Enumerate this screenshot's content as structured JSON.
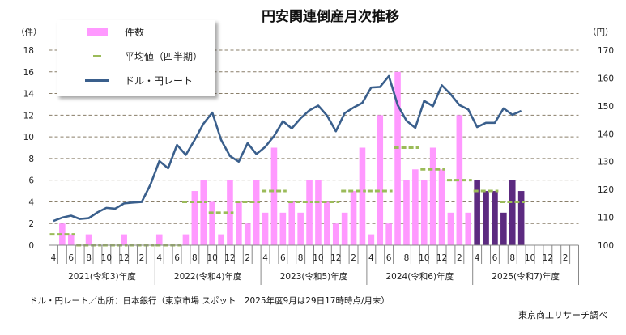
{
  "title": "円安関連倒産月次推移",
  "left_unit": "（件）",
  "right_unit": "（円）",
  "legend": {
    "count": "件数",
    "average": "平均値（四半期）",
    "rate": "ドル・円レート"
  },
  "source_note": "ドル・円レート／出所：日本銀行（東京市場 スポット　2025年度9月は29日17時時点/月末）",
  "credit": "東京商工リサーチ調べ",
  "colors": {
    "bar": "#ff99ff",
    "bar_current": "#5c2a80",
    "average": "#9bbb59",
    "rate": "#3a5f8c",
    "grid": "#8a7f6a"
  },
  "chart_data": {
    "type": "bar+line",
    "title": "円安関連倒産月次推移",
    "month_labels": [
      "4",
      "",
      "6",
      "",
      "8",
      "",
      "10",
      "",
      "12",
      "",
      "2",
      ""
    ],
    "fiscal_years": [
      "2021(令和3)年度",
      "2022(令和4)年度",
      "2023(令和5)年度",
      "2024(令和6)年度",
      "2025(令和7)年度"
    ],
    "left_axis": {
      "min": 0,
      "max": 18,
      "step": 2,
      "ticks": [
        "0",
        "2",
        "4",
        "6",
        "8",
        "10",
        "12",
        "14",
        "16",
        "18"
      ]
    },
    "right_axis": {
      "min": 100,
      "max": 170,
      "step": 10,
      "ticks": [
        "100",
        "110",
        "120",
        "130",
        "140",
        "150",
        "160",
        "170"
      ]
    },
    "grid": true,
    "legend_position": "top-left",
    "counts": [
      0,
      2,
      1,
      0,
      1,
      0,
      0,
      0,
      1,
      0,
      0,
      0,
      1,
      0,
      0,
      1,
      5,
      6,
      4,
      1,
      6,
      4,
      2,
      6,
      3,
      9,
      3,
      4,
      3,
      6,
      6,
      4,
      2,
      3,
      5,
      9,
      1,
      12,
      2,
      16,
      6,
      7,
      6,
      9,
      7,
      3,
      12,
      3,
      6,
      5,
      5,
      3,
      6,
      5
    ],
    "current_fy_start_index": 48,
    "quarterly_average": [
      1,
      0,
      0,
      0,
      0,
      4,
      3,
      4,
      5,
      4,
      4,
      5,
      5,
      9,
      7,
      6,
      5,
      4
    ],
    "usd_jpy": [
      108.7,
      109.9,
      110.6,
      109.4,
      109.7,
      111.8,
      113.4,
      113.1,
      115.0,
      115.3,
      115.5,
      121.8,
      130.2,
      127.6,
      136.0,
      132.4,
      137.8,
      143.6,
      147.6,
      137.8,
      132.0,
      130.0,
      136.6,
      132.7,
      135.3,
      139.2,
      144.5,
      141.9,
      145.5,
      148.4,
      150.1,
      146.5,
      140.9,
      147.4,
      149.4,
      151.1,
      156.6,
      156.8,
      160.7,
      150.3,
      144.7,
      142.1,
      151.8,
      149.9,
      157.4,
      154.2,
      150.3,
      148.7,
      142.4,
      143.9,
      143.9,
      149.1,
      146.8,
      148.2
    ]
  }
}
